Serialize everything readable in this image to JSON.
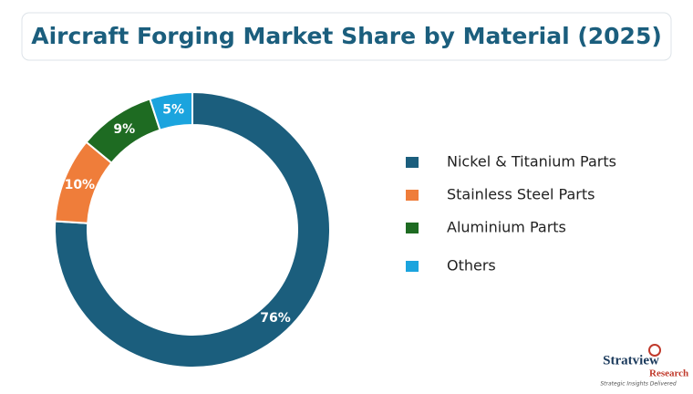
{
  "chart_data": {
    "type": "donut",
    "title": "Aircraft Forging Market Share by Material (2025)",
    "categories": [
      "Nickel & Titanium Parts",
      "Stainless Steel Parts",
      "Aluminium Parts",
      "Others"
    ],
    "values": [
      76,
      10,
      9,
      5
    ],
    "value_labels": [
      "76%",
      "10%",
      "9%",
      "5%"
    ],
    "colors": [
      "#1b5e7d",
      "#ef7d3a",
      "#1e6b22",
      "#1ba4de"
    ],
    "legend": "right"
  },
  "logo": {
    "name": "Stratview",
    "sub": "Research",
    "tagline": "Strategic Insights Delivered"
  }
}
